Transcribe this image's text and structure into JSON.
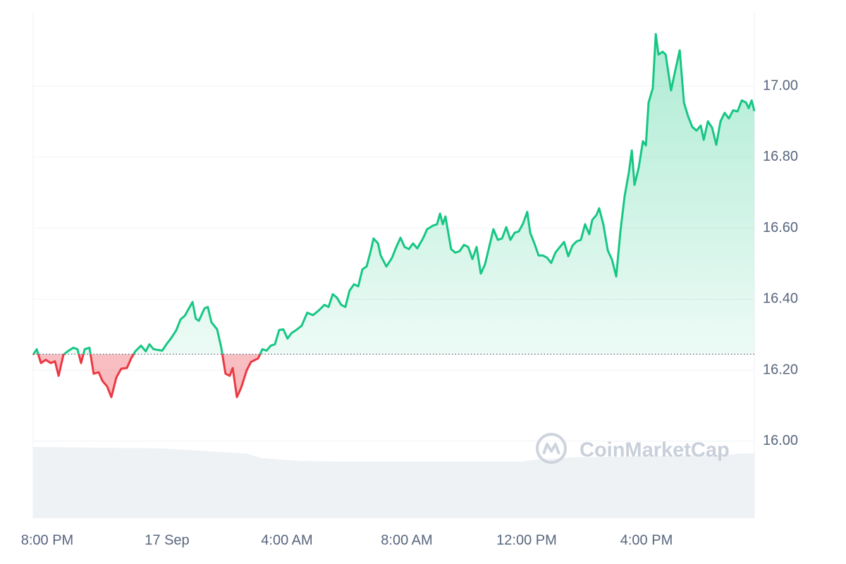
{
  "chart_data": {
    "type": "line",
    "watermark": "CoinMarketCap",
    "x": [
      -0.47,
      -0.35,
      -0.21,
      -0.05,
      0.12,
      0.26,
      0.38,
      0.54,
      0.68,
      0.87,
      1.01,
      1.13,
      1.25,
      1.41,
      1.55,
      1.72,
      1.84,
      2.0,
      2.14,
      2.31,
      2.47,
      2.66,
      2.8,
      2.94,
      3.13,
      3.29,
      3.41,
      3.55,
      3.84,
      3.98,
      4.16,
      4.31,
      4.45,
      4.59,
      4.73,
      4.85,
      4.96,
      5.06,
      5.25,
      5.36,
      5.48,
      5.67,
      5.81,
      5.95,
      6.09,
      6.19,
      6.33,
      6.47,
      6.66,
      6.8,
      6.94,
      7.04,
      7.18,
      7.32,
      7.46,
      7.6,
      7.74,
      7.88,
      8.02,
      8.16,
      8.31,
      8.49,
      8.68,
      8.87,
      9.06,
      9.25,
      9.39,
      9.53,
      9.67,
      9.81,
      9.95,
      10.09,
      10.24,
      10.38,
      10.52,
      10.66,
      10.8,
      10.89,
      11.04,
      11.13,
      11.32,
      11.51,
      11.65,
      11.79,
      11.93,
      12.07,
      12.21,
      12.35,
      12.54,
      12.68,
      12.87,
      13.01,
      13.11,
      13.2,
      13.29,
      13.48,
      13.62,
      13.76,
      13.91,
      14.05,
      14.19,
      14.33,
      14.47,
      14.61,
      14.75,
      14.89,
      15.04,
      15.18,
      15.32,
      15.46,
      15.6,
      15.74,
      15.88,
      16.02,
      16.12,
      16.26,
      16.4,
      16.54,
      16.68,
      16.82,
      16.96,
      17.11,
      17.25,
      17.39,
      17.53,
      17.67,
      17.81,
      17.95,
      18.09,
      18.19,
      18.33,
      18.42,
      18.56,
      18.71,
      18.85,
      18.99,
      19.13,
      19.27,
      19.41,
      19.51,
      19.6,
      19.74,
      19.88,
      19.98,
      20.07,
      20.21,
      20.31,
      20.4,
      20.54,
      20.64,
      20.82,
      20.96,
      21.11,
      21.25,
      21.39,
      21.53,
      21.67,
      21.81,
      21.91,
      22.05,
      22.19,
      22.33,
      22.47,
      22.61,
      22.75,
      22.89,
      23.04,
      23.18,
      23.32,
      23.41,
      23.51,
      23.6
    ],
    "series": [
      {
        "color": "#16c784",
        "color_below": "#ea3943",
        "values": [
          16.243,
          16.259,
          16.22,
          16.229,
          16.22,
          16.225,
          16.184,
          16.243,
          16.253,
          16.263,
          16.259,
          16.22,
          16.259,
          16.263,
          16.19,
          16.194,
          16.17,
          16.154,
          16.124,
          16.18,
          16.204,
          16.206,
          16.233,
          16.253,
          16.269,
          16.253,
          16.273,
          16.259,
          16.255,
          16.273,
          16.293,
          16.313,
          16.343,
          16.353,
          16.374,
          16.392,
          16.345,
          16.339,
          16.374,
          16.378,
          16.335,
          16.315,
          16.263,
          16.19,
          16.184,
          16.206,
          16.124,
          16.15,
          16.2,
          16.223,
          16.229,
          16.233,
          16.259,
          16.255,
          16.269,
          16.273,
          16.313,
          16.315,
          16.289,
          16.305,
          16.313,
          16.325,
          16.362,
          16.355,
          16.368,
          16.384,
          16.378,
          16.414,
          16.404,
          16.384,
          16.378,
          16.424,
          16.442,
          16.436,
          16.484,
          16.492,
          16.537,
          16.571,
          16.557,
          16.523,
          16.492,
          16.517,
          16.547,
          16.573,
          16.547,
          16.541,
          16.557,
          16.543,
          16.571,
          16.597,
          16.607,
          16.611,
          16.641,
          16.611,
          16.633,
          16.541,
          16.531,
          16.535,
          16.553,
          16.547,
          16.513,
          16.547,
          16.472,
          16.498,
          16.547,
          16.597,
          16.567,
          16.571,
          16.603,
          16.567,
          16.587,
          16.591,
          16.613,
          16.646,
          16.587,
          16.557,
          16.523,
          16.523,
          16.517,
          16.502,
          16.531,
          16.547,
          16.561,
          16.521,
          16.551,
          16.563,
          16.567,
          16.611,
          16.583,
          16.623,
          16.637,
          16.656,
          16.611,
          16.537,
          16.511,
          16.464,
          16.591,
          16.69,
          16.756,
          16.819,
          16.722,
          16.77,
          16.845,
          16.833,
          16.954,
          16.994,
          17.147,
          17.089,
          17.097,
          17.089,
          16.988,
          17.044,
          17.101,
          16.954,
          16.915,
          16.885,
          16.875,
          16.889,
          16.849,
          16.901,
          16.883,
          16.835,
          16.901,
          16.925,
          16.909,
          16.932,
          16.929,
          16.96,
          16.954,
          16.938,
          16.96,
          16.93
        ]
      },
      {
        "axis": "y2",
        "color": "#eff2f5",
        "x": [
          -0.47,
          3.84,
          4.07,
          5.48,
          6.66,
          7.13,
          8.54,
          10.19,
          15.84,
          16.31,
          17.72,
          18.42,
          22.89,
          23.01,
          23.6
        ],
        "values": [
          14.1,
          13.8,
          13.7,
          13.2,
          12.8,
          11.9,
          11.3,
          11.2,
          11.2,
          11.6,
          12.1,
          12.1,
          12.6,
          12.8,
          12.8
        ]
      }
    ],
    "baseline": 16.245,
    "xlim": [
      -0.47,
      23.6
    ],
    "xticks": [
      {
        "value": 0,
        "label": "8:00 PM"
      },
      {
        "value": 4,
        "label": "17 Sep"
      },
      {
        "value": 8,
        "label": "4:00 AM"
      },
      {
        "value": 12,
        "label": "8:00 AM"
      },
      {
        "value": 16,
        "label": "12:00 PM"
      },
      {
        "value": 20,
        "label": "4:00 PM"
      }
    ],
    "ylim": [
      15.783,
      17.207
    ],
    "yticks": [
      {
        "value": 16,
        "label": "16.00"
      },
      {
        "value": 16.2,
        "label": "16.20"
      },
      {
        "value": 16.4,
        "label": "16.40"
      },
      {
        "value": 16.6,
        "label": "16.60"
      },
      {
        "value": 16.8,
        "label": "16.80"
      },
      {
        "value": 17,
        "label": "17.00"
      }
    ],
    "y2lim": [
      0,
      100
    ],
    "grid": true
  }
}
